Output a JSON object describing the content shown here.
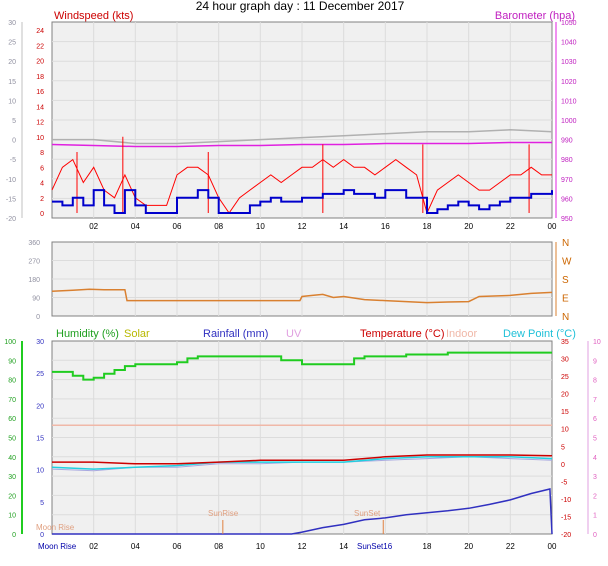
{
  "title": "24 hour graph day : 11 December 2017",
  "x_tick_labels": [
    "02",
    "04",
    "06",
    "08",
    "10",
    "12",
    "14",
    "16",
    "18",
    "20",
    "22",
    "00"
  ],
  "colors": {
    "windspeed": "#ff0000",
    "wind_avg": "#0000cc",
    "barometer": "#e020e0",
    "outdoor_grey": "#b0b0b0",
    "wind_dir": "#d98030",
    "humidity": "#20cc20",
    "solar": "#c8c800",
    "rainfall": "#3030c0",
    "uv": "#e0a0e0",
    "temperature": "#cc0000",
    "indoor": "#f0b8a8",
    "dew_point": "#20d0e0",
    "sun_moon": "#e08040",
    "plot_bg": "#f0f0f0"
  },
  "chart_data": [
    {
      "type": "line",
      "name": "Wind and Barometer",
      "labels": {
        "left": "Windspeed (kts)",
        "right": "Barometer (hpa)"
      },
      "left_outer_ticks": [
        "30",
        "25",
        "20",
        "15",
        "10",
        "5",
        "0",
        "-5",
        "-10",
        "-15",
        "-20"
      ],
      "left_inner_ticks": [
        "24",
        "22",
        "20",
        "18",
        "16",
        "14",
        "12",
        "10",
        "8",
        "6",
        "4",
        "2",
        "0"
      ],
      "right_ticks": [
        "1050",
        "1040",
        "1030",
        "1020",
        "1010",
        "1000",
        "990",
        "980",
        "970",
        "960",
        "950"
      ],
      "xlim": [
        0,
        24
      ],
      "series": [
        {
          "name": "Windspeed",
          "axis": "windspeed",
          "x": [
            0.0,
            0.5,
            1.0,
            1.5,
            2.0,
            2.5,
            3.0,
            3.5,
            4.0,
            4.5,
            5.0,
            5.5,
            6.0,
            6.5,
            7.0,
            7.5,
            8.0,
            8.5,
            9.0,
            9.5,
            10.0,
            10.5,
            11.0,
            11.5,
            12.0,
            12.5,
            13.0,
            13.5,
            14.0,
            14.5,
            15.0,
            15.5,
            16.0,
            16.5,
            17.0,
            17.5,
            18.0,
            18.5,
            19.0,
            19.5,
            20.0,
            20.5,
            21.0,
            21.5,
            22.0,
            22.5,
            23.0,
            23.5,
            24.0
          ],
          "values": [
            3,
            6,
            7,
            4,
            6,
            3,
            2,
            5,
            2,
            1,
            1,
            1,
            5,
            6,
            6,
            5,
            2,
            0,
            2,
            3,
            4,
            5,
            4,
            5,
            6,
            6,
            7,
            6,
            7,
            6,
            6,
            5,
            6,
            7,
            6,
            5,
            0,
            3,
            4,
            5,
            4,
            3,
            3,
            4,
            5,
            5,
            6,
            5,
            5
          ],
          "gusts": [
            [
              3.4,
              10
            ],
            [
              13.0,
              9
            ],
            [
              17.8,
              9
            ],
            [
              22.9,
              9
            ],
            [
              7.5,
              8
            ],
            [
              1.2,
              8
            ]
          ]
        },
        {
          "name": "Avg wind",
          "axis": "windspeed",
          "x": [
            0.0,
            0.5,
            1.0,
            1.5,
            2.0,
            2.5,
            3.0,
            3.5,
            4.0,
            4.5,
            5.0,
            5.5,
            6.0,
            6.5,
            7.0,
            7.5,
            8.0,
            8.5,
            9.0,
            9.5,
            10.0,
            10.5,
            11.0,
            11.5,
            12.0,
            12.5,
            13.0,
            13.5,
            14.0,
            14.5,
            15.0,
            15.5,
            16.0,
            16.5,
            17.0,
            17.5,
            18.0,
            18.5,
            19.0,
            19.5,
            20.0,
            20.5,
            21.0,
            21.5,
            22.0,
            22.5,
            23.0,
            23.5,
            24.0
          ],
          "values": [
            1.5,
            1,
            2,
            1,
            3,
            1,
            0,
            3,
            1,
            0,
            0,
            0,
            2,
            2,
            3,
            2,
            0,
            0,
            0,
            1,
            1.5,
            2,
            1.5,
            1.5,
            2,
            2,
            2.5,
            2.5,
            3,
            2.5,
            2.5,
            2,
            3,
            3,
            2,
            2,
            0,
            0.5,
            1,
            1.5,
            1,
            0.5,
            1,
            1.5,
            2,
            2,
            2.5,
            2.5,
            3
          ]
        },
        {
          "name": "Barometer",
          "axis": "barometer",
          "x": [
            0,
            2,
            4,
            6,
            8,
            10,
            12,
            14,
            16,
            18,
            20,
            22,
            24
          ],
          "values": [
            987.5,
            987,
            986.5,
            986.5,
            987,
            987,
            987.5,
            987.5,
            988,
            988,
            988,
            988.5,
            988.5
          ]
        },
        {
          "name": "Grey",
          "axis": "windspeed_outer",
          "x": [
            0,
            2,
            4,
            6,
            8,
            10,
            12,
            14,
            16,
            18,
            20,
            22,
            24
          ],
          "values": [
            0,
            0,
            -1,
            -1,
            -0.5,
            0,
            0.5,
            1,
            1.5,
            2,
            2,
            2.5,
            2
          ]
        }
      ]
    },
    {
      "type": "line",
      "name": "Wind Direction",
      "left_ticks": [
        "360",
        "270",
        "180",
        "90",
        "0"
      ],
      "right_ticks": [
        "N",
        "W",
        "S",
        "E",
        "N"
      ],
      "xlim": [
        0,
        24
      ],
      "series": [
        {
          "name": "Direction",
          "x": [
            0,
            1,
            1.8,
            2.5,
            3.5,
            3.6,
            5,
            8,
            10,
            11.9,
            12,
            12.5,
            13,
            13.5,
            14,
            15,
            16,
            17,
            18,
            19,
            20,
            20.5,
            22,
            23,
            24
          ],
          "values": [
            120,
            125,
            130,
            128,
            128,
            75,
            75,
            75,
            75,
            75,
            95,
            100,
            105,
            90,
            95,
            80,
            75,
            70,
            65,
            68,
            70,
            95,
            100,
            110,
            115
          ]
        }
      ]
    },
    {
      "type": "line",
      "name": "Humidity Temperature Rain",
      "labels": {
        "humidity": "Humidity (%)",
        "solar": "Solar",
        "rainfall": "Rainfall (mm)",
        "uv": "UV",
        "temperature": "Temperature (°C)",
        "indoor": "Indoor",
        "dew_point": "Dew Point (°C)"
      },
      "left_outer_ticks": [
        "100",
        "90",
        "80",
        "70",
        "60",
        "50",
        "40",
        "30",
        "20",
        "10",
        "0"
      ],
      "left_inner_ticks": [
        "30",
        "25",
        "20",
        "15",
        "10",
        "5",
        "0"
      ],
      "right_inner_ticks": [
        "35",
        "30",
        "25",
        "20",
        "15",
        "10",
        "5",
        "0",
        "-5",
        "-10",
        "-15",
        "-20"
      ],
      "right_outer_ticks": [
        "10",
        "9",
        "8",
        "7",
        "6",
        "5",
        "4",
        "3",
        "2",
        "1",
        "0"
      ],
      "xlim": [
        0,
        24
      ],
      "sun_moon_labels": [
        "Moon Rise",
        "Moon Rise",
        "SunRise",
        "SunSet",
        "SunSet16"
      ],
      "series": [
        {
          "name": "Humidity",
          "axis": "humidity",
          "x": [
            0,
            0.5,
            1,
            1.5,
            2,
            2.5,
            3,
            3.5,
            4,
            5,
            6,
            6.5,
            7,
            8,
            9,
            10,
            11,
            12,
            13,
            14,
            14.5,
            15,
            16,
            17,
            18,
            19,
            20,
            21,
            22,
            23,
            24
          ],
          "values": [
            84,
            84,
            82,
            80,
            81,
            83,
            85,
            87,
            88,
            88,
            89,
            91,
            92,
            92,
            92,
            92,
            90,
            88,
            88,
            88,
            91,
            92,
            92,
            93,
            93,
            94,
            94,
            94,
            94,
            94,
            94
          ]
        },
        {
          "name": "Temperature",
          "axis": "temperature",
          "x": [
            0,
            2,
            4,
            6,
            8,
            10,
            12,
            14,
            16,
            18,
            20,
            22,
            24
          ],
          "values": [
            0.5,
            0.5,
            0,
            0,
            0.5,
            1,
            1,
            1,
            2,
            2.5,
            2.5,
            2.5,
            2.3
          ]
        },
        {
          "name": "Dew Point",
          "axis": "temperature",
          "x": [
            0,
            2,
            4,
            6,
            8,
            10,
            12,
            14,
            16,
            18,
            20,
            22,
            24
          ],
          "values": [
            -1,
            -1.5,
            -1,
            -0.5,
            0.5,
            0.5,
            0.5,
            0.5,
            1.5,
            2,
            2,
            2,
            1.5
          ]
        },
        {
          "name": "Indoor",
          "axis": "temperature",
          "x": [
            0,
            24
          ],
          "values": [
            11,
            11
          ]
        },
        {
          "name": "Rainfall",
          "axis": "rainfall",
          "x": [
            0,
            11.5,
            12,
            13,
            14,
            15,
            16,
            17,
            18,
            19,
            20,
            21,
            22,
            23,
            23.9,
            24
          ],
          "values": [
            0,
            0,
            0.3,
            1,
            1.5,
            2.2,
            2.5,
            3,
            3.3,
            3.6,
            4,
            4.6,
            5.3,
            6.3,
            7,
            0
          ]
        },
        {
          "name": "Outdoor grey",
          "axis": "temperature",
          "x": [
            0,
            2,
            4,
            6,
            8,
            10,
            12,
            14,
            16,
            18,
            20,
            22,
            24
          ],
          "values": [
            -1.5,
            -2,
            -1,
            -1,
            0,
            0,
            0.5,
            0.5,
            1,
            1.5,
            2,
            1.5,
            1
          ]
        }
      ]
    }
  ]
}
